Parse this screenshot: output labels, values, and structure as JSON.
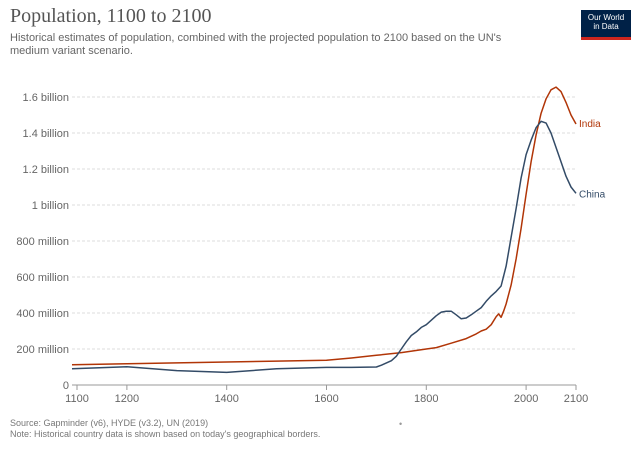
{
  "chart_data": {
    "type": "line",
    "title": "Population, 1100 to 2100",
    "subtitle": "Historical estimates of population, combined with the projected population to 2100 based on the UN's medium variant scenario.",
    "x_ticks": [
      1100,
      1200,
      1400,
      1600,
      1800,
      2000,
      2100
    ],
    "xlim": [
      1090,
      2100
    ],
    "y_ticks": [
      {
        "value": 0,
        "label": "0"
      },
      {
        "value": 200,
        "label": "200 million"
      },
      {
        "value": 400,
        "label": "400 million"
      },
      {
        "value": 600,
        "label": "600 million"
      },
      {
        "value": 800,
        "label": "800 million"
      },
      {
        "value": 1000,
        "label": "1 billion"
      },
      {
        "value": 1200,
        "label": "1.2 billion"
      },
      {
        "value": 1400,
        "label": "1.4 billion"
      },
      {
        "value": 1600,
        "label": "1.6 billion"
      }
    ],
    "ylim": [
      0,
      1700
    ],
    "y_unit": "million",
    "grid": true,
    "series": [
      {
        "name": "India",
        "color": "#b13507",
        "points": [
          [
            1090,
            113
          ],
          [
            1200,
            118
          ],
          [
            1300,
            123
          ],
          [
            1400,
            128
          ],
          [
            1500,
            133
          ],
          [
            1600,
            137
          ],
          [
            1650,
            150
          ],
          [
            1700,
            165
          ],
          [
            1750,
            180
          ],
          [
            1800,
            200
          ],
          [
            1820,
            208
          ],
          [
            1850,
            232
          ],
          [
            1880,
            258
          ],
          [
            1900,
            284
          ],
          [
            1910,
            300
          ],
          [
            1920,
            310
          ],
          [
            1930,
            335
          ],
          [
            1940,
            380
          ],
          [
            1945,
            395
          ],
          [
            1950,
            376
          ],
          [
            1955,
            410
          ],
          [
            1960,
            450
          ],
          [
            1970,
            555
          ],
          [
            1980,
            700
          ],
          [
            1990,
            870
          ],
          [
            2000,
            1060
          ],
          [
            2010,
            1240
          ],
          [
            2020,
            1390
          ],
          [
            2030,
            1510
          ],
          [
            2040,
            1590
          ],
          [
            2050,
            1640
          ],
          [
            2060,
            1655
          ],
          [
            2070,
            1630
          ],
          [
            2080,
            1570
          ],
          [
            2090,
            1500
          ],
          [
            2100,
            1450
          ]
        ]
      },
      {
        "name": "China",
        "color": "#334b67",
        "points": [
          [
            1090,
            90
          ],
          [
            1200,
            101
          ],
          [
            1300,
            80
          ],
          [
            1400,
            70
          ],
          [
            1500,
            90
          ],
          [
            1600,
            98
          ],
          [
            1650,
            98
          ],
          [
            1700,
            100
          ],
          [
            1710,
            110
          ],
          [
            1730,
            135
          ],
          [
            1740,
            160
          ],
          [
            1750,
            200
          ],
          [
            1760,
            240
          ],
          [
            1770,
            275
          ],
          [
            1780,
            295
          ],
          [
            1790,
            320
          ],
          [
            1800,
            335
          ],
          [
            1810,
            360
          ],
          [
            1820,
            385
          ],
          [
            1830,
            405
          ],
          [
            1840,
            410
          ],
          [
            1850,
            410
          ],
          [
            1860,
            390
          ],
          [
            1870,
            368
          ],
          [
            1880,
            372
          ],
          [
            1890,
            390
          ],
          [
            1900,
            410
          ],
          [
            1910,
            430
          ],
          [
            1920,
            465
          ],
          [
            1930,
            495
          ],
          [
            1940,
            520
          ],
          [
            1950,
            550
          ],
          [
            1960,
            660
          ],
          [
            1970,
            820
          ],
          [
            1980,
            980
          ],
          [
            1990,
            1150
          ],
          [
            2000,
            1280
          ],
          [
            2010,
            1360
          ],
          [
            2020,
            1430
          ],
          [
            2030,
            1465
          ],
          [
            2040,
            1455
          ],
          [
            2050,
            1400
          ],
          [
            2060,
            1320
          ],
          [
            2070,
            1240
          ],
          [
            2080,
            1160
          ],
          [
            2090,
            1100
          ],
          [
            2100,
            1065
          ]
        ]
      }
    ]
  },
  "logo": {
    "line1": "Our World",
    "line2": "in Data"
  },
  "footer": {
    "source": "Source: Gapminder (v6), HYDE (v3.2), UN (2019)",
    "note": "Note: Historical country data is shown based on today's geographical borders."
  },
  "colors": {
    "accent_logo": "#002147",
    "logo_stripe": "#ce261e",
    "india": "#b13507",
    "china": "#334b67"
  }
}
